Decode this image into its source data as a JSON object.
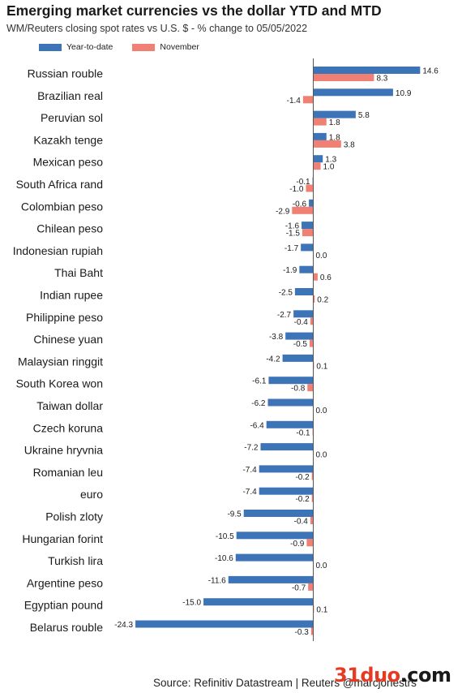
{
  "title": "Emerging market currencies vs the dollar YTD and MTD",
  "subtitle": "WM/Reuters closing spot rates vs U.S. $ - % change to 05/05/2022",
  "source": "Source: Refinitiv Datastream | Reuters @marcjonestrs",
  "watermark": {
    "part1": "31duo",
    "part2": ".com"
  },
  "colors": {
    "ytd": "#3d74b8",
    "mtd": "#f08073",
    "axis": "#555555"
  },
  "chart_data": {
    "type": "bar",
    "orientation": "horizontal",
    "title": "Emerging market currencies vs the dollar YTD and MTD",
    "subtitle": "WM/Reuters closing spot rates vs U.S. $ - % change to 05/05/2022",
    "xlim": [
      -25,
      15.5
    ],
    "grid": false,
    "legend": "top-left",
    "categories": [
      "Russian rouble",
      "Brazilian real",
      "Peruvian sol",
      "Kazakh tenge",
      "Mexican peso",
      "South Africa rand",
      "Colombian peso",
      "Chilean peso",
      "Indonesian rupiah",
      "Thai Baht",
      "Indian rupee",
      "Philippine peso",
      "Chinese yuan",
      "Malaysian ringgit",
      "South Korea won",
      "Taiwan dollar",
      "Czech koruna",
      "Ukraine hryvnia",
      "Romanian leu",
      "euro",
      "Polish zloty",
      "Hungarian forint",
      "Turkish lira",
      "Argentine peso",
      "Egyptian pound",
      "Belarus rouble"
    ],
    "series": [
      {
        "name": "Year-to-date",
        "color": "#3d74b8",
        "values": [
          14.6,
          10.9,
          5.8,
          1.8,
          1.3,
          -0.1,
          -0.6,
          -1.6,
          -1.7,
          -1.9,
          -2.5,
          -2.7,
          -3.8,
          -4.2,
          -6.1,
          -6.2,
          -6.4,
          -7.2,
          -7.4,
          -7.4,
          -9.5,
          -10.5,
          -10.6,
          -11.6,
          -15.0,
          -24.3
        ],
        "labels": [
          "14.6",
          "10.9",
          "5.8",
          "1.8",
          "1.3",
          "-0.1",
          "-0.6",
          "-1.6",
          "-1.7",
          "-1.9",
          "-2.5",
          "-2.7",
          "-3.8",
          "-4.2",
          "-6.1",
          "-6.2",
          "-6.4",
          "-7.2",
          "-7.4",
          "-7.4",
          "-9.5",
          "-10.5",
          "-10.6",
          "-11.6",
          "-15.0",
          "-24.3"
        ]
      },
      {
        "name": "November",
        "color": "#f08073",
        "values": [
          8.3,
          -1.4,
          1.8,
          3.8,
          1.0,
          -1.0,
          -2.9,
          -1.5,
          0.0,
          0.6,
          0.2,
          -0.4,
          -0.5,
          0.1,
          -0.8,
          0.0,
          -0.1,
          0.0,
          -0.2,
          -0.2,
          -0.4,
          -0.9,
          0.0,
          -0.7,
          0.1,
          -0.3
        ],
        "labels": [
          "8.3",
          "-1.4",
          "1.8",
          "3.8",
          "1.0",
          "-1.0",
          "-2.9",
          "-1.5",
          "0.0",
          "0.6",
          "0.2",
          "-0.4",
          "-0.5",
          "0.1",
          "-0.8",
          "0.0",
          "-0.1",
          "0.0",
          "-0.2",
          "-0.2",
          "-0.4",
          "-0.9",
          "0.0",
          "-0.7",
          "0.1",
          "-0.3"
        ]
      }
    ]
  }
}
